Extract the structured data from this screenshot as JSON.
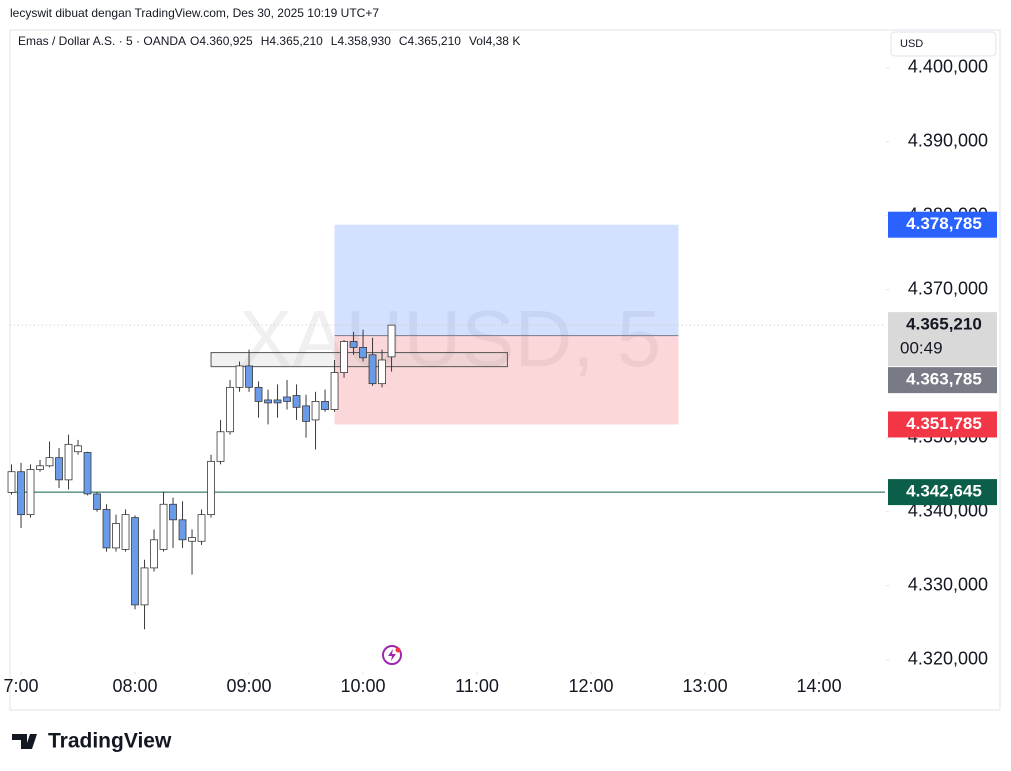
{
  "chart_data": {
    "type": "candlestick",
    "header": "lecyswit dibuat dengan TradingView.com, Des 30, 2025 10:19 UTC+7",
    "title": "Emas / Dollar A.S. · 5 · OANDA",
    "ohlc_legend": [
      {
        "key": "O",
        "label": "4.360,925"
      },
      {
        "key": "H",
        "label": "4.365,210"
      },
      {
        "key": "L",
        "label": "4.358,930"
      },
      {
        "key": "C",
        "label": "4.365,210"
      },
      {
        "key": "Vol",
        "label": "4,38 K"
      }
    ],
    "watermark": "XAUUSD, 5",
    "currency": "USD",
    "brand": "TradingView",
    "up_color": "#ffffff",
    "down_color": "#6a9be8",
    "wick_color": "#3a3a3a",
    "x": [
      415,
      420,
      425,
      430,
      435,
      440,
      445,
      450,
      455,
      460,
      465,
      470,
      475,
      480,
      485,
      490,
      495,
      500,
      505,
      510,
      515,
      520,
      525,
      530,
      535,
      540,
      545,
      550,
      555,
      560,
      565,
      570,
      575,
      580,
      585,
      590,
      595,
      600,
      605,
      610,
      615
    ],
    "open": [
      4342.6,
      4345.4,
      4339.6,
      4345.7,
      4346.2,
      4347.3,
      4344.3,
      4348.1,
      4348.0,
      4342.4,
      4340.3,
      4335.1,
      4334.9,
      4339.2,
      4327.4,
      4332.4,
      4334.9,
      4341.0,
      4338.9,
      4336.0,
      4336.0,
      4339.6,
      4346.8,
      4350.8,
      4356.8,
      4359.7,
      4356.8,
      4355.1,
      4355.1,
      4355.5,
      4355.7,
      4354.3,
      4352.4,
      4354.9,
      4353.8,
      4358.8,
      4363.0,
      4362.2,
      4361.2,
      4357.3,
      4360.925
    ],
    "high": [
      4346.4,
      4346.6,
      4346.4,
      4347.0,
      4349.5,
      4348.6,
      4350.4,
      4349.7,
      4348.1,
      4342.6,
      4341.0,
      4339.6,
      4340.3,
      4339.5,
      4333.5,
      4337.6,
      4342.7,
      4341.9,
      4341.4,
      4337.6,
      4340.3,
      4347.7,
      4352.4,
      4357.8,
      4360.3,
      4361.9,
      4357.6,
      4356.5,
      4357.2,
      4357.8,
      4357.2,
      4355.8,
      4356.2,
      4356.5,
      4360.5,
      4363.2,
      4364.3,
      4364.6,
      4363.5,
      4361.9,
      4365.21
    ],
    "low": [
      4342.3,
      4337.8,
      4339.2,
      4345.4,
      4346.0,
      4343.2,
      4343.0,
      4347.7,
      4342.2,
      4340.0,
      4334.6,
      4334.6,
      4334.6,
      4326.8,
      4324.1,
      4331.9,
      4334.6,
      4335.1,
      4335.1,
      4331.5,
      4335.5,
      4339.2,
      4346.4,
      4350.4,
      4356.2,
      4356.2,
      4352.7,
      4351.8,
      4352.7,
      4353.8,
      4352.4,
      4350.0,
      4348.4,
      4353.5,
      4353.5,
      4358.1,
      4361.2,
      4360.3,
      4357.0,
      4356.8,
      4358.93
    ],
    "close": [
      4345.4,
      4339.6,
      4345.7,
      4346.2,
      4347.3,
      4344.3,
      4349.1,
      4348.9,
      4342.4,
      4340.3,
      4335.1,
      4338.4,
      4339.6,
      4327.4,
      4332.4,
      4336.2,
      4341.0,
      4338.9,
      4336.2,
      4336.5,
      4339.6,
      4346.8,
      4350.8,
      4356.8,
      4359.7,
      4356.8,
      4354.9,
      4354.7,
      4354.7,
      4354.9,
      4354.1,
      4352.2,
      4354.9,
      4353.8,
      4358.8,
      4363.0,
      4362.2,
      4360.8,
      4357.3,
      4360.5,
      4365.21
    ],
    "xlim": [
      414.2,
      874.7
    ],
    "xticks": [
      {
        "value": 420,
        "label": "7:00"
      },
      {
        "value": 480,
        "label": "08:00"
      },
      {
        "value": 540,
        "label": "09:00"
      },
      {
        "value": 600,
        "label": "10:00"
      },
      {
        "value": 660,
        "label": "11:00"
      },
      {
        "value": 720,
        "label": "12:00"
      },
      {
        "value": 780,
        "label": "13:00"
      },
      {
        "value": 840,
        "label": "14:00"
      }
    ],
    "ylim": [
      4318.6,
      4405.1
    ],
    "yticks": [
      {
        "value": 4400,
        "label": "4.400,000"
      },
      {
        "value": 4390,
        "label": "4.390,000"
      },
      {
        "value": 4380,
        "label": "4.380,000"
      },
      {
        "value": 4370,
        "label": "4.370,000"
      },
      {
        "value": 4350,
        "label": "4.350,000"
      },
      {
        "value": 4340,
        "label": "4.340,000"
      },
      {
        "value": 4330,
        "label": "4.330,000"
      },
      {
        "value": 4320,
        "label": "4.320,000"
      }
    ],
    "grid": false,
    "position": {
      "start": 585,
      "end": 766,
      "entry": 4363.785,
      "target": 4378.785,
      "stop": 4351.785
    },
    "rectangle": {
      "x": [
        520,
        676
      ],
      "y": [
        4359.6,
        4361.5
      ]
    },
    "price_labels": [
      {
        "value": 4378.785,
        "label": "4.378,785",
        "color": "#2962ff",
        "text_color": "#ffffff"
      },
      {
        "value": 4365.21,
        "label": "4.365,210",
        "countdown": "00:49",
        "color": "#d9d9d9",
        "text_color": "#131722"
      },
      {
        "value": 4363.785,
        "label": "4.363,785",
        "color": "#787b86",
        "text_color": "#ffffff"
      },
      {
        "value": 4351.785,
        "label": "4.351,785",
        "color": "#f23645",
        "text_color": "#ffffff"
      },
      {
        "value": 4342.645,
        "label": "4.342,645",
        "color": "#0b5e4a",
        "text_color": "#ffffff"
      }
    ]
  }
}
